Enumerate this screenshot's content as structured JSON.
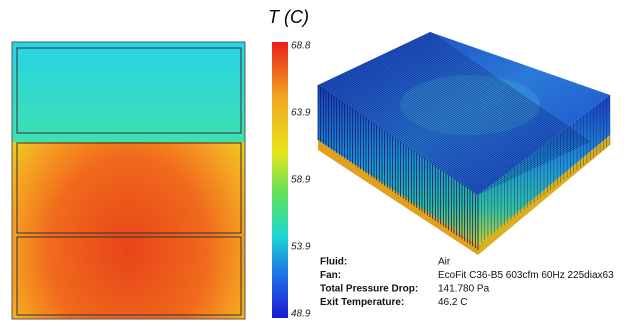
{
  "colorbar": {
    "title": "T (C)",
    "ticks": [
      68.8,
      63.9,
      58.9,
      53.9,
      48.9
    ]
  },
  "info": [
    [
      "Fluid:",
      "Air"
    ],
    [
      "Fan:",
      "EcoFit C36-B5 603cfm 60Hz 225diax63"
    ],
    [
      "Total Pressure Drop:",
      "141.780 Pa"
    ],
    [
      "Exit Temperature:",
      "46.2 C"
    ]
  ]
}
